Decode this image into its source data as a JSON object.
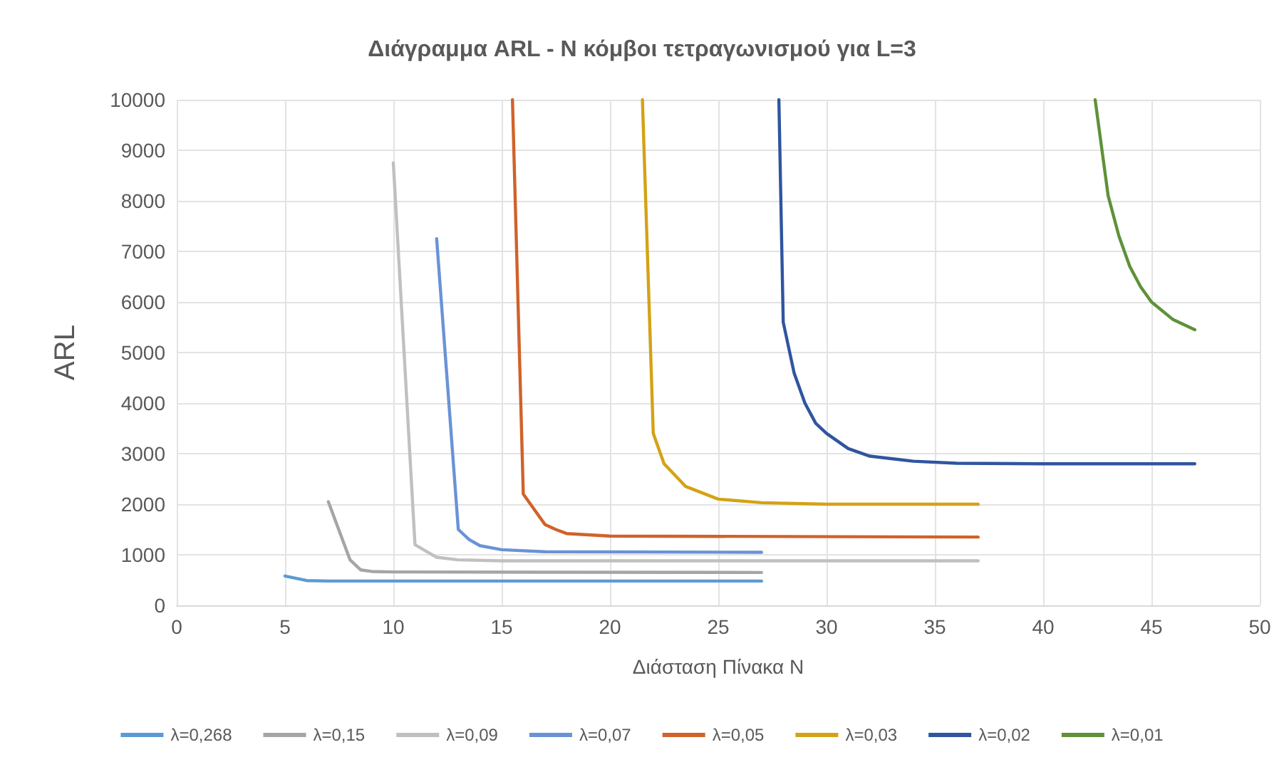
{
  "chart_data": {
    "type": "line",
    "title": "Διάγραμμα ARL - N κόμβοι τετραγωνισμού για L=3",
    "xlabel": "Διάσταση Πίνακα N",
    "ylabel": "ARL",
    "xlim": [
      0,
      50
    ],
    "xticks": [
      0,
      5,
      10,
      15,
      20,
      25,
      30,
      35,
      40,
      45,
      50
    ],
    "ylim": [
      0,
      10000
    ],
    "yticks": [
      0,
      1000,
      2000,
      3000,
      4000,
      5000,
      6000,
      7000,
      8000,
      9000,
      10000
    ],
    "grid": true,
    "legend": "bottom",
    "marker": "none",
    "line_style": "solid",
    "series": [
      {
        "name": "λ=0,268",
        "color": "#5b9bd5",
        "x": [
          5,
          6,
          7,
          27
        ],
        "values": [
          580,
          490,
          480,
          480
        ]
      },
      {
        "name": "λ=0,15",
        "color": "#a5a5a5",
        "x": [
          7,
          8,
          8.5,
          9,
          10,
          27
        ],
        "values": [
          2050,
          900,
          700,
          670,
          660,
          650
        ]
      },
      {
        "name": "λ=0,09",
        "color": "#c0c0c0",
        "x": [
          10,
          11,
          12,
          13,
          15,
          37
        ],
        "values": [
          8750,
          1200,
          950,
          900,
          880,
          880
        ]
      },
      {
        "name": "λ=0,07",
        "color": "#6a93d6",
        "x": [
          12,
          13,
          13.5,
          14,
          15,
          17,
          27
        ],
        "values": [
          7250,
          1500,
          1300,
          1180,
          1100,
          1060,
          1050
        ]
      },
      {
        "name": "λ=0,05",
        "color": "#d0622a",
        "x": [
          15.5,
          16,
          17,
          17.5,
          18,
          20,
          37
        ],
        "values": [
          10000,
          2200,
          1600,
          1500,
          1420,
          1370,
          1350
        ]
      },
      {
        "name": "λ=0,03",
        "color": "#d4a216",
        "x": [
          21.5,
          22,
          22.5,
          23.5,
          25,
          27,
          30,
          37
        ],
        "values": [
          10000,
          3400,
          2800,
          2350,
          2100,
          2030,
          2000,
          2000
        ]
      },
      {
        "name": "λ=0,02",
        "color": "#2f55a0",
        "x": [
          27.8,
          28,
          28.5,
          29,
          29.5,
          30,
          31,
          32,
          34,
          36,
          40,
          47
        ],
        "values": [
          10000,
          5600,
          4600,
          4000,
          3600,
          3400,
          3100,
          2950,
          2850,
          2810,
          2800,
          2800
        ]
      },
      {
        "name": "λ=0,01",
        "color": "#5e9138",
        "x": [
          42.4,
          43,
          43.5,
          44,
          44.5,
          45,
          46,
          47
        ],
        "values": [
          10000,
          8100,
          7300,
          6700,
          6300,
          6000,
          5650,
          5450
        ]
      }
    ]
  }
}
